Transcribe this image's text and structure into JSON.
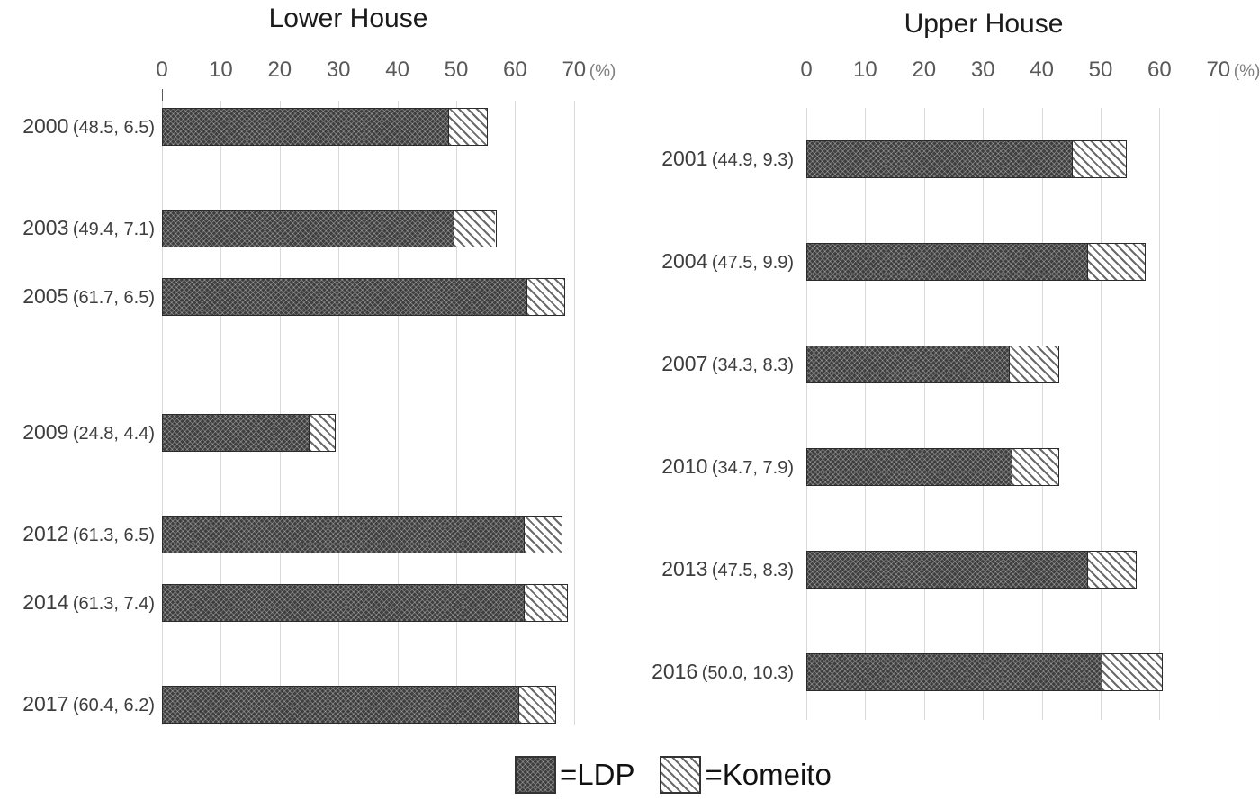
{
  "colors": {
    "background": "#ffffff",
    "ldp_fill": "#3e3e3e",
    "komeito_stripe": "#6a6a6a",
    "gridline": "#d9d9d9",
    "axis_text": "#595959",
    "row_label_text": "#3d3d3d",
    "title_text": "#1b1b1b",
    "bar_border": "#2b2b2b"
  },
  "axis": {
    "pct_suffix": "(%)"
  },
  "legend": {
    "ldp_label": "=LDP",
    "komeito_label": "=Komeito"
  },
  "chart_data": [
    {
      "type": "bar",
      "orientation": "horizontal",
      "stacked": true,
      "title": "Lower House",
      "xlim": [
        0,
        70
      ],
      "xticks": [
        0,
        10,
        20,
        30,
        40,
        50,
        60,
        70
      ],
      "x_unit": "%",
      "grid": true,
      "legend_position": "bottom",
      "series_names": [
        "LDP",
        "Komeito"
      ],
      "rows": [
        {
          "year": "2000",
          "values_label": "(48.5, 6.5)",
          "ldp": 48.5,
          "komeito": 6.5
        },
        {
          "year": "2003",
          "values_label": "(49.4, 7.1)",
          "ldp": 49.4,
          "komeito": 7.1
        },
        {
          "year": "2005",
          "values_label": "(61.7, 6.5)",
          "ldp": 61.7,
          "komeito": 6.5
        },
        {
          "year": "2009",
          "values_label": "(24.8, 4.4)",
          "ldp": 24.8,
          "komeito": 4.4
        },
        {
          "year": "2012",
          "values_label": "(61.3, 6.5)",
          "ldp": 61.3,
          "komeito": 6.5
        },
        {
          "year": "2014",
          "values_label": "(61.3, 7.4)",
          "ldp": 61.3,
          "komeito": 7.4
        },
        {
          "year": "2017",
          "values_label": "(60.4, 6.2)",
          "ldp": 60.4,
          "komeito": 6.2
        }
      ]
    },
    {
      "type": "bar",
      "orientation": "horizontal",
      "stacked": true,
      "title": "Upper House",
      "xlim": [
        0,
        70
      ],
      "xticks": [
        0,
        10,
        20,
        30,
        40,
        50,
        60,
        70
      ],
      "x_unit": "%",
      "grid": true,
      "legend_position": "bottom",
      "series_names": [
        "LDP",
        "Komeito"
      ],
      "rows": [
        {
          "year": "2001",
          "values_label": "(44.9, 9.3)",
          "ldp": 44.9,
          "komeito": 9.3
        },
        {
          "year": "2004",
          "values_label": "(47.5, 9.9)",
          "ldp": 47.5,
          "komeito": 9.9
        },
        {
          "year": "2007",
          "values_label": "(34.3, 8.3)",
          "ldp": 34.3,
          "komeito": 8.3
        },
        {
          "year": "2010",
          "values_label": "(34.7, 7.9)",
          "ldp": 34.7,
          "komeito": 7.9
        },
        {
          "year": "2013",
          "values_label": "(47.5, 8.3)",
          "ldp": 47.5,
          "komeito": 8.3
        },
        {
          "year": "2016",
          "values_label": "(50.0, 10.3)",
          "ldp": 50.0,
          "komeito": 10.3
        }
      ]
    }
  ]
}
